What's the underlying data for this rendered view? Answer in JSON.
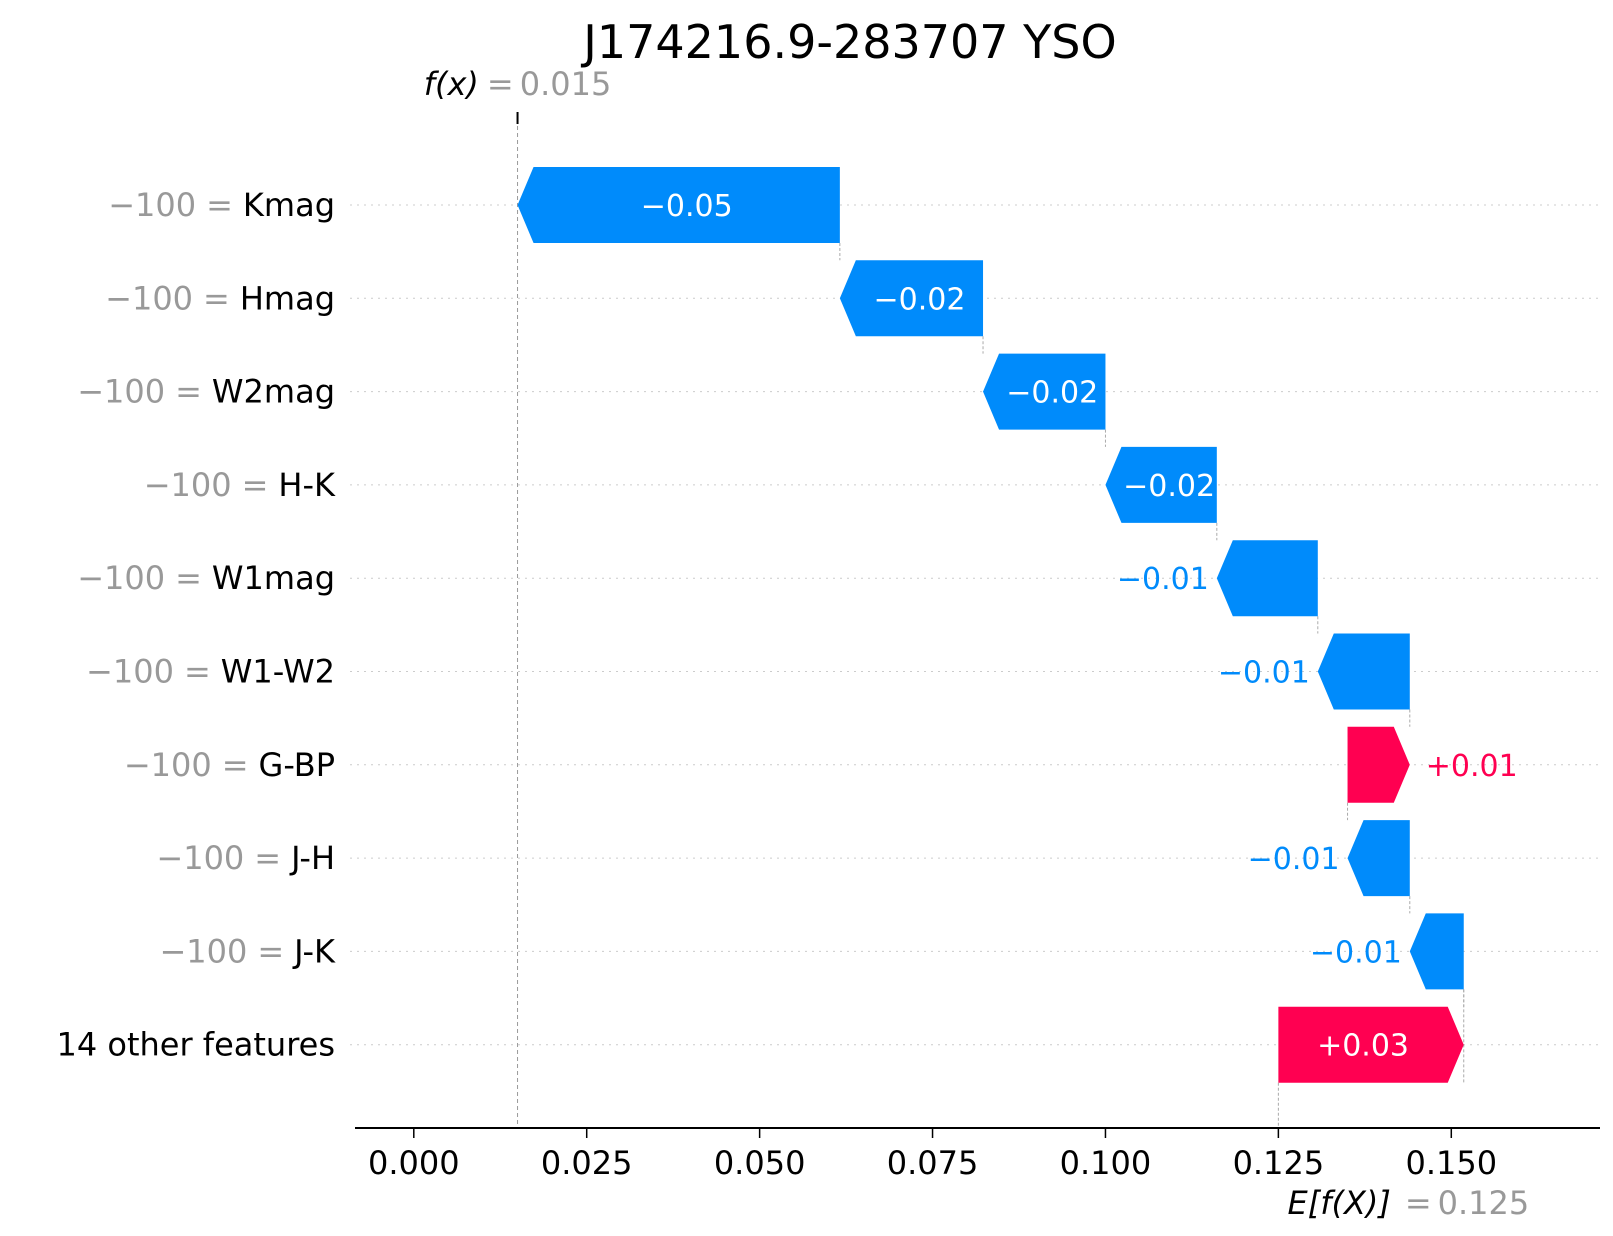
{
  "chart_data": {
    "type": "waterfall",
    "title": "J174216.9-283707 YSO",
    "xlabel": "",
    "ylabel": "",
    "xlim": [
      -0.0085,
      0.1715
    ],
    "x_ticks": [
      "0.000",
      "0.025",
      "0.050",
      "0.075",
      "0.100",
      "0.125",
      "0.150"
    ],
    "tick_values": [
      0.0,
      0.025,
      0.05,
      0.075,
      0.1,
      0.125,
      0.15
    ],
    "fx": {
      "label": "f(x)",
      "eq": "=",
      "value_text": "0.015",
      "value": 0.015
    },
    "efx": {
      "label": "E[f(X)]",
      "eq": "=",
      "value_text": "0.125",
      "value": 0.125
    },
    "rows": [
      {
        "value_text": "−100",
        "eq": "=",
        "feature": "Kmag",
        "start": 0.0616,
        "end": 0.015,
        "label": "−0.05",
        "label_inside": true
      },
      {
        "value_text": "−100",
        "eq": "=",
        "feature": "Hmag",
        "start": 0.0823,
        "end": 0.0616,
        "label": "−0.02",
        "label_inside": true
      },
      {
        "value_text": "−100",
        "eq": "=",
        "feature": "W2mag",
        "start": 0.1,
        "end": 0.0823,
        "label": "−0.02",
        "label_inside": true
      },
      {
        "value_text": "−100",
        "eq": "=",
        "feature": "H-K",
        "start": 0.1161,
        "end": 0.1,
        "label": "−0.02",
        "label_inside": true
      },
      {
        "value_text": "−100",
        "eq": "=",
        "feature": "W1mag",
        "start": 0.1307,
        "end": 0.1161,
        "label": "−0.01",
        "label_inside": false
      },
      {
        "value_text": "−100",
        "eq": "=",
        "feature": "W1-W2",
        "start": 0.144,
        "end": 0.1307,
        "label": "−0.01",
        "label_inside": false
      },
      {
        "value_text": "−100",
        "eq": "=",
        "feature": "G-BP",
        "start": 0.135,
        "end": 0.144,
        "label": "+0.01",
        "label_inside": false
      },
      {
        "value_text": "−100",
        "eq": "=",
        "feature": "J-H",
        "start": 0.144,
        "end": 0.135,
        "label": "−0.01",
        "label_inside": false
      },
      {
        "value_text": "−100",
        "eq": "=",
        "feature": "J-K",
        "start": 0.1518,
        "end": 0.144,
        "label": "−0.01",
        "label_inside": false
      },
      {
        "value_text": "",
        "eq": "",
        "feature": "14 other features",
        "start": 0.125,
        "end": 0.1518,
        "label": "+0.03",
        "label_inside": true
      }
    ],
    "colors": {
      "positive": "#ff0051",
      "negative": "#008bfb",
      "muted": "#999999",
      "grid": "#cccccc"
    },
    "grid": true
  }
}
